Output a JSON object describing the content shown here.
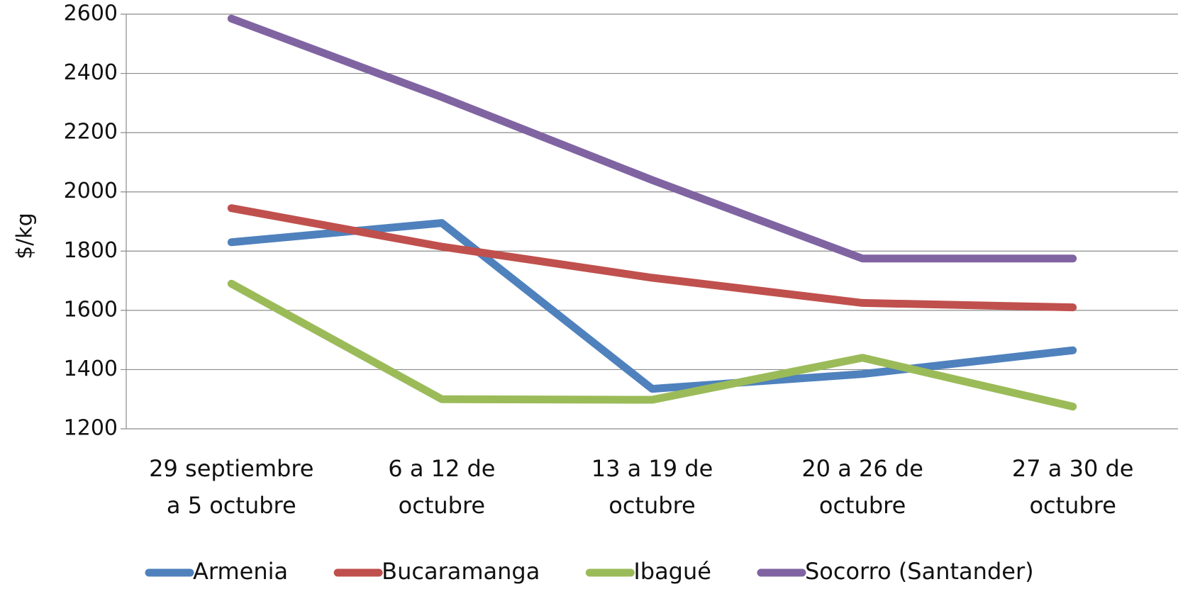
{
  "chart_data": {
    "type": "line",
    "y_label": "$/kg",
    "categories": [
      "29 septiembre a 5 octubre",
      "6 a 12 de octubre",
      "13 a 19 de octubre",
      "20 a 26 de octubre",
      "27 a 30 de octubre"
    ],
    "series": [
      {
        "name": "Armenia",
        "color": "#4f81bd",
        "values": [
          1830,
          1895,
          1335,
          1385,
          1465
        ]
      },
      {
        "name": "Bucaramanga",
        "color": "#c0504d",
        "values": [
          1945,
          1815,
          1710,
          1625,
          1610
        ]
      },
      {
        "name": "Ibagué",
        "color": "#9bbb59",
        "values": [
          1690,
          1300,
          1298,
          1440,
          1275
        ]
      },
      {
        "name": "Socorro (Santander)",
        "color": "#8064a2",
        "values": [
          2585,
          2320,
          2040,
          1775,
          1775
        ]
      }
    ],
    "ylim": [
      1200,
      2600
    ],
    "yticks": [
      1200,
      1400,
      1600,
      1800,
      2000,
      2200,
      2400,
      2600
    ],
    "grid": true,
    "legend": "bottom"
  }
}
